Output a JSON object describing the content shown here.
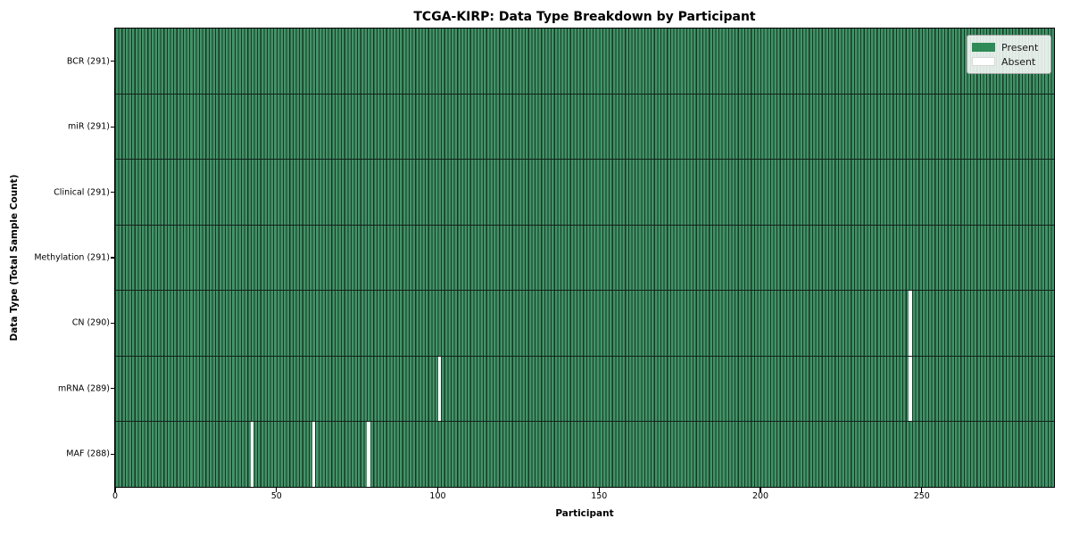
{
  "chart_data": {
    "type": "heatmap",
    "title": "TCGA-KIRP: Data Type Breakdown by Participant",
    "xlabel": "Participant",
    "ylabel": "Data Type (Total Sample Count)",
    "n_participants": 291,
    "x_ticks": [
      0,
      50,
      100,
      150,
      200,
      250
    ],
    "xlim": [
      0,
      291
    ],
    "grid": "off",
    "legend_position": "upper right",
    "rows": [
      {
        "data_type": "BCR",
        "label": "BCR (291)",
        "present_count": 291,
        "absent_participants": []
      },
      {
        "data_type": "miR",
        "label": "miR (291)",
        "present_count": 291,
        "absent_participants": []
      },
      {
        "data_type": "Clinical",
        "label": "Clinical (291)",
        "present_count": 291,
        "absent_participants": []
      },
      {
        "data_type": "Methylation",
        "label": "Methylation (291)",
        "present_count": 291,
        "absent_participants": []
      },
      {
        "data_type": "CN",
        "label": "CN (290)",
        "present_count": 290,
        "absent_participants": [
          246
        ]
      },
      {
        "data_type": "mRNA",
        "label": "mRNA (289)",
        "present_count": 289,
        "absent_participants": [
          100,
          246
        ]
      },
      {
        "data_type": "MAF",
        "label": "MAF (288)",
        "present_count": 288,
        "absent_participants": [
          42,
          61,
          78
        ]
      }
    ],
    "legend": [
      {
        "label": "Present",
        "color": "#2e8b57"
      },
      {
        "label": "Absent",
        "color": "#ffffff"
      }
    ],
    "colors": {
      "present_fill": "#3e9567",
      "bar_edge": "#1e3226",
      "absent_fill": "#ffffff",
      "legend_present": "#2e8b57",
      "row_divider": "#122019",
      "plot_border": "#000000"
    }
  }
}
